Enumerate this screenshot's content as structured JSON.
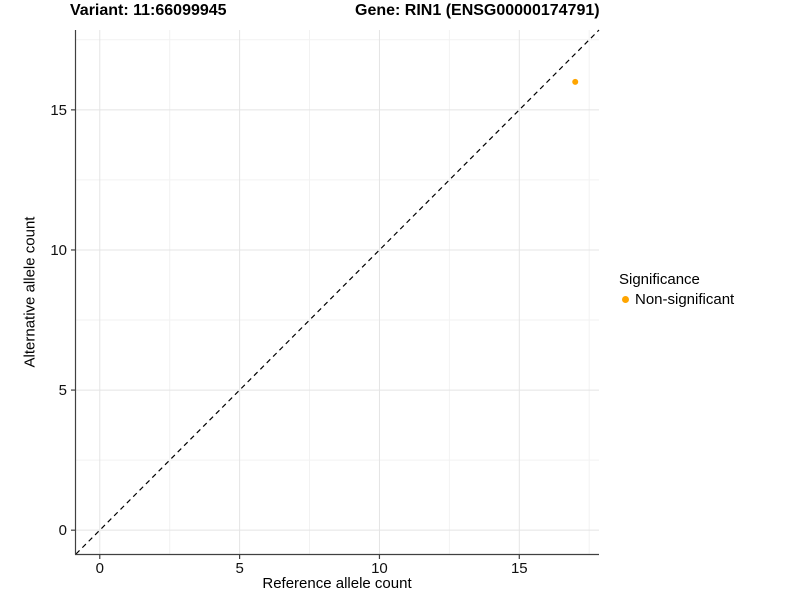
{
  "titles": {
    "left": "Variant: 11:66099945",
    "right": "Gene: RIN1 (ENSG00000174791)"
  },
  "chart_data": {
    "type": "scatter",
    "title_left": "Variant: 11:66099945",
    "title_right": "Gene: RIN1 (ENSG00000174791)",
    "xlabel": "Reference allele count",
    "ylabel": "Alternative allele count",
    "xlim": [
      -0.85,
      17.85
    ],
    "ylim": [
      -0.85,
      17.85
    ],
    "x_ticks": [
      0,
      5,
      10,
      15
    ],
    "y_ticks": [
      0,
      5,
      10,
      15
    ],
    "x_minor_gridlines": [
      2.5,
      7.5,
      12.5,
      17.5
    ],
    "y_minor_gridlines": [
      2.5,
      7.5,
      12.5,
      17.5
    ],
    "grid": "major and minor, light gray on white",
    "reference_line": {
      "kind": "identity y=x",
      "style": "dashed",
      "color": "#000000"
    },
    "series": [
      {
        "name": "Non-significant",
        "color": "#FFA500",
        "points": [
          {
            "x": 17,
            "y": 16
          }
        ]
      }
    ],
    "legend": {
      "title": "Significance",
      "position": "right",
      "items": [
        {
          "label": "Non-significant",
          "color": "#FFA500"
        }
      ]
    }
  },
  "style_colors": {
    "axis_line": "#404040",
    "tick_label": "#111111",
    "major_grid": "#e4e4e4",
    "minor_grid": "#f2f2f2",
    "background": "#ffffff"
  }
}
